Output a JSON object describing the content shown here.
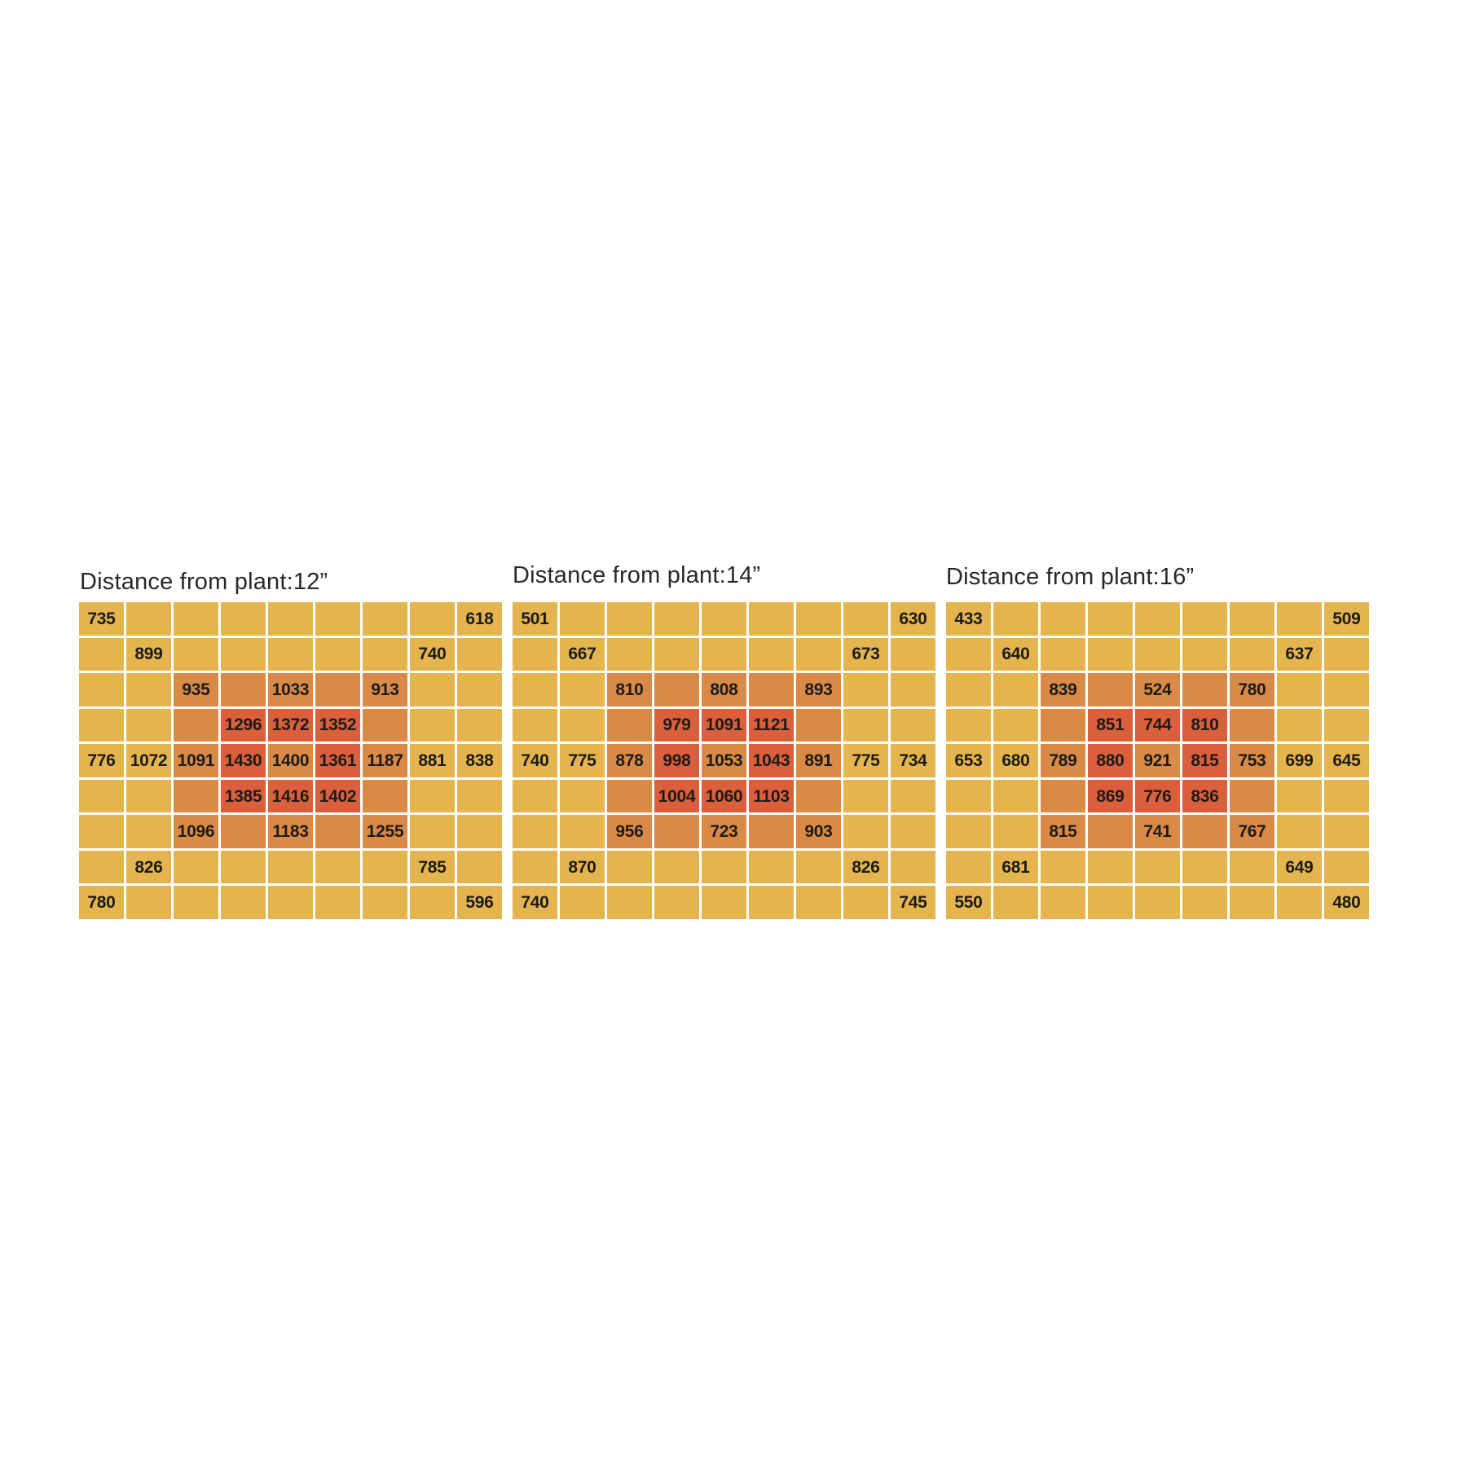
{
  "colors": {
    "scale_low": "#e4b44f",
    "scale_mid": "#d98a47",
    "scale_high": "#da5f3c",
    "value_text": "#1d1b17",
    "title_text": "#282828",
    "background": "#ffffff"
  },
  "tone_map": [
    "000000000",
    "000000000",
    "001111100",
    "001222100",
    "001212100",
    "001222100",
    "001111100",
    "000000000",
    "000000000"
  ],
  "chart_data": [
    {
      "type": "heatmap",
      "title": "Distance from plant:12”",
      "rows": 9,
      "cols": 9,
      "legend_position": "none",
      "palette": {
        "low": "#e4b44f",
        "mid": "#d98a47",
        "high": "#da5f3c"
      },
      "values": [
        [
          735,
          null,
          null,
          null,
          null,
          null,
          null,
          null,
          618
        ],
        [
          null,
          899,
          null,
          null,
          null,
          null,
          null,
          740,
          null
        ],
        [
          null,
          null,
          935,
          null,
          1033,
          null,
          913,
          null,
          null
        ],
        [
          null,
          null,
          null,
          1296,
          1372,
          1352,
          null,
          null,
          null
        ],
        [
          776,
          1072,
          1091,
          1430,
          1400,
          1361,
          1187,
          881,
          838
        ],
        [
          null,
          null,
          null,
          1385,
          1416,
          1402,
          null,
          null,
          null
        ],
        [
          null,
          null,
          1096,
          null,
          1183,
          null,
          1255,
          null,
          null
        ],
        [
          null,
          826,
          null,
          null,
          null,
          null,
          null,
          785,
          null
        ],
        [
          780,
          null,
          null,
          null,
          null,
          null,
          null,
          null,
          596
        ]
      ]
    },
    {
      "type": "heatmap",
      "title": "Distance from plant:14”",
      "rows": 9,
      "cols": 9,
      "legend_position": "none",
      "palette": {
        "low": "#e4b44f",
        "mid": "#d98a47",
        "high": "#da5f3c"
      },
      "values": [
        [
          501,
          null,
          null,
          null,
          null,
          null,
          null,
          null,
          630
        ],
        [
          null,
          667,
          null,
          null,
          null,
          null,
          null,
          673,
          null
        ],
        [
          null,
          null,
          810,
          null,
          808,
          null,
          893,
          null,
          null
        ],
        [
          null,
          null,
          null,
          979,
          1091,
          1121,
          null,
          null,
          null
        ],
        [
          740,
          775,
          878,
          998,
          1053,
          1043,
          891,
          775,
          734
        ],
        [
          null,
          null,
          null,
          1004,
          1060,
          1103,
          null,
          null,
          null
        ],
        [
          null,
          null,
          956,
          null,
          723,
          null,
          903,
          null,
          null
        ],
        [
          null,
          870,
          null,
          null,
          null,
          null,
          null,
          826,
          null
        ],
        [
          740,
          null,
          null,
          null,
          null,
          null,
          null,
          null,
          745
        ]
      ]
    },
    {
      "type": "heatmap",
      "title": "Distance from plant:16”",
      "rows": 9,
      "cols": 9,
      "legend_position": "none",
      "palette": {
        "low": "#e4b44f",
        "mid": "#d98a47",
        "high": "#da5f3c"
      },
      "values": [
        [
          433,
          null,
          null,
          null,
          null,
          null,
          null,
          null,
          509
        ],
        [
          null,
          640,
          null,
          null,
          null,
          null,
          null,
          637,
          null
        ],
        [
          null,
          null,
          839,
          null,
          524,
          null,
          780,
          null,
          null
        ],
        [
          null,
          null,
          null,
          851,
          744,
          810,
          null,
          null,
          null
        ],
        [
          653,
          680,
          789,
          880,
          921,
          815,
          753,
          699,
          645
        ],
        [
          null,
          null,
          null,
          869,
          776,
          836,
          null,
          null,
          null
        ],
        [
          null,
          null,
          815,
          null,
          741,
          null,
          767,
          null,
          null
        ],
        [
          null,
          681,
          null,
          null,
          null,
          null,
          null,
          649,
          null
        ],
        [
          550,
          null,
          null,
          null,
          null,
          null,
          null,
          null,
          480
        ]
      ]
    }
  ]
}
